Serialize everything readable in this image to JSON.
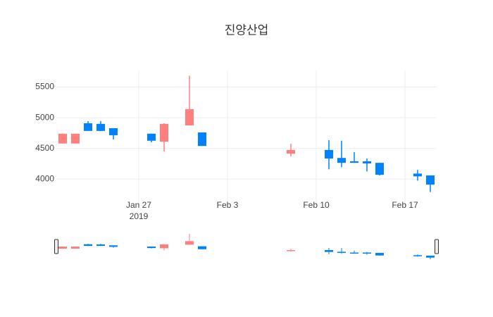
{
  "chart_data": {
    "type": "candlestick",
    "title": "진양산업",
    "x": [
      "2019-01-21",
      "2019-01-22",
      "2019-01-23",
      "2019-01-24",
      "2019-01-25",
      "2019-01-28",
      "2019-01-29",
      "2019-01-31",
      "2019-02-01",
      "2019-02-08",
      "2019-02-11",
      "2019-02-12",
      "2019-02-13",
      "2019-02-14",
      "2019-02-15",
      "2019-02-18",
      "2019-02-19"
    ],
    "open": [
      4580,
      4580,
      4910,
      4900,
      4830,
      4740,
      4610,
      4875,
      4760,
      4415,
      4475,
      4345,
      4290,
      4290,
      4265,
      4090,
      4060
    ],
    "high": [
      4740,
      4740,
      4945,
      4945,
      4830,
      4740,
      4910,
      5685,
      4760,
      4575,
      4635,
      4625,
      4440,
      4335,
      4265,
      4150,
      4060
    ],
    "low": [
      4580,
      4580,
      4785,
      4785,
      4645,
      4600,
      4450,
      4875,
      4540,
      4370,
      4160,
      4195,
      4265,
      4125,
      4060,
      3975,
      3790
    ],
    "close": [
      4740,
      4740,
      4785,
      4785,
      4715,
      4625,
      4900,
      5140,
      4540,
      4475,
      4335,
      4265,
      4265,
      4255,
      4070,
      4045,
      3910
    ],
    "increasing_color": "#ff7f7f",
    "decreasing_color": "#0082ff",
    "xlim": [
      "2019-01-20",
      "2019-02-20"
    ],
    "xticks": [
      {
        "value": "2019-01-27",
        "label": "Jan 27"
      },
      {
        "value": "2019-02-03",
        "label": "Feb 3"
      },
      {
        "value": "2019-02-10",
        "label": "Feb 10"
      },
      {
        "value": "2019-02-17",
        "label": "Feb 17"
      }
    ],
    "x_year_label": "2019",
    "ylim": [
      3590,
      5770
    ],
    "yticks": [
      4000,
      4500,
      5000,
      5500
    ],
    "grid": true,
    "rangeslider": true
  }
}
